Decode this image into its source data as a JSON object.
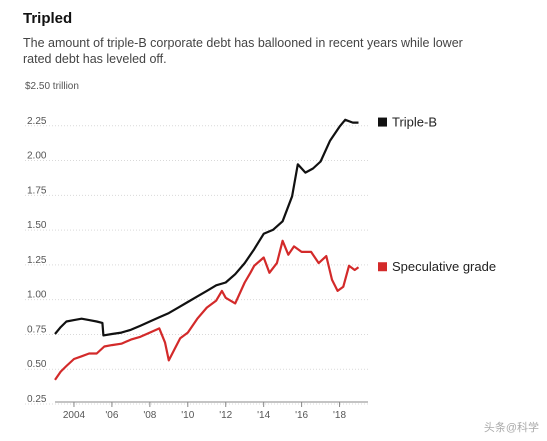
{
  "header": {
    "title": "Tripled",
    "subtitle": "The amount of triple-B corporate debt has ballooned in recent years while lower rated debt has leveled off."
  },
  "chart_data": {
    "type": "line",
    "title": "Tripled",
    "ylabel": "",
    "xlabel": "",
    "y_unit_label": "$2.50 trillion",
    "ylim": [
      0.25,
      2.5
    ],
    "xlim": [
      2003.0,
      2019.5
    ],
    "y_ticks": [
      0.25,
      0.5,
      0.75,
      1.0,
      1.25,
      1.5,
      1.75,
      2.0,
      2.25
    ],
    "y_tick_labels": [
      "0.25",
      "0.50",
      "0.75",
      "1.00",
      "1.25",
      "1.50",
      "1.75",
      "2.00",
      "2.25"
    ],
    "x_ticks": [
      2004,
      2006,
      2008,
      2010,
      2012,
      2014,
      2016,
      2018
    ],
    "x_tick_labels": [
      "2004",
      "'06",
      "'08",
      "'10",
      "'12",
      "'14",
      "'16",
      "'18"
    ],
    "grid": "horizontal",
    "legend": "right",
    "series": [
      {
        "name": "Triple-B",
        "color": "#111111",
        "points": [
          [
            2003.0,
            0.71
          ],
          [
            2003.3,
            0.76
          ],
          [
            2003.6,
            0.8
          ],
          [
            2004.0,
            0.81
          ],
          [
            2004.4,
            0.82
          ],
          [
            2004.8,
            0.81
          ],
          [
            2005.2,
            0.8
          ],
          [
            2005.5,
            0.79
          ],
          [
            2005.55,
            0.7
          ],
          [
            2006.0,
            0.71
          ],
          [
            2006.5,
            0.72
          ],
          [
            2007.0,
            0.74
          ],
          [
            2007.5,
            0.77
          ],
          [
            2008.0,
            0.8
          ],
          [
            2008.5,
            0.83
          ],
          [
            2009.0,
            0.86
          ],
          [
            2009.5,
            0.9
          ],
          [
            2010.0,
            0.94
          ],
          [
            2010.5,
            0.98
          ],
          [
            2011.0,
            1.02
          ],
          [
            2011.5,
            1.06
          ],
          [
            2012.0,
            1.08
          ],
          [
            2012.5,
            1.14
          ],
          [
            2013.0,
            1.22
          ],
          [
            2013.5,
            1.32
          ],
          [
            2014.0,
            1.43
          ],
          [
            2014.5,
            1.46
          ],
          [
            2015.0,
            1.52
          ],
          [
            2015.5,
            1.7
          ],
          [
            2015.8,
            1.93
          ],
          [
            2016.2,
            1.87
          ],
          [
            2016.6,
            1.9
          ],
          [
            2017.0,
            1.95
          ],
          [
            2017.5,
            2.1
          ],
          [
            2018.0,
            2.2
          ],
          [
            2018.3,
            2.25
          ],
          [
            2018.7,
            2.23
          ],
          [
            2019.0,
            2.23
          ]
        ]
      },
      {
        "name": "Speculative grade",
        "color": "#d32a2a",
        "points": [
          [
            2003.0,
            0.38
          ],
          [
            2003.3,
            0.44
          ],
          [
            2003.6,
            0.48
          ],
          [
            2004.0,
            0.53
          ],
          [
            2004.4,
            0.55
          ],
          [
            2004.8,
            0.57
          ],
          [
            2005.2,
            0.57
          ],
          [
            2005.6,
            0.62
          ],
          [
            2006.0,
            0.63
          ],
          [
            2006.5,
            0.64
          ],
          [
            2007.0,
            0.67
          ],
          [
            2007.5,
            0.69
          ],
          [
            2008.0,
            0.72
          ],
          [
            2008.5,
            0.75
          ],
          [
            2008.8,
            0.65
          ],
          [
            2009.0,
            0.52
          ],
          [
            2009.3,
            0.6
          ],
          [
            2009.6,
            0.68
          ],
          [
            2010.0,
            0.72
          ],
          [
            2010.5,
            0.82
          ],
          [
            2011.0,
            0.9
          ],
          [
            2011.5,
            0.95
          ],
          [
            2011.8,
            1.02
          ],
          [
            2012.0,
            0.97
          ],
          [
            2012.5,
            0.93
          ],
          [
            2013.0,
            1.08
          ],
          [
            2013.3,
            1.15
          ],
          [
            2013.5,
            1.2
          ],
          [
            2014.0,
            1.26
          ],
          [
            2014.3,
            1.15
          ],
          [
            2014.7,
            1.22
          ],
          [
            2015.0,
            1.38
          ],
          [
            2015.3,
            1.28
          ],
          [
            2015.6,
            1.34
          ],
          [
            2016.0,
            1.3
          ],
          [
            2016.5,
            1.3
          ],
          [
            2016.9,
            1.22
          ],
          [
            2017.3,
            1.27
          ],
          [
            2017.6,
            1.1
          ],
          [
            2017.9,
            1.02
          ],
          [
            2018.2,
            1.05
          ],
          [
            2018.5,
            1.2
          ],
          [
            2018.8,
            1.17
          ],
          [
            2019.0,
            1.19
          ]
        ]
      }
    ]
  },
  "watermark": "头条@科学"
}
